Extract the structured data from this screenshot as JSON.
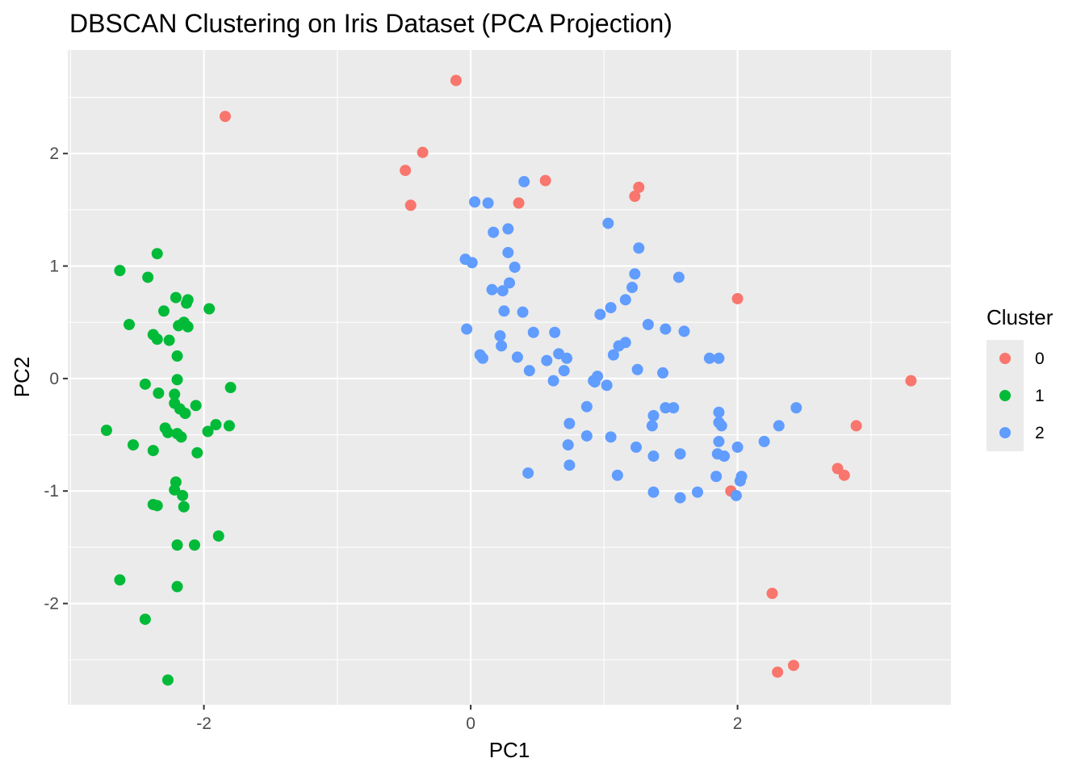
{
  "chart_data": {
    "type": "scatter",
    "title": "DBSCAN Clustering on Iris Dataset (PCA Projection)",
    "xlabel": "PC1",
    "ylabel": "PC2",
    "xlim": [
      -3.02,
      3.6
    ],
    "ylim": [
      -2.9,
      2.92
    ],
    "x_ticks": [
      -2,
      0,
      2
    ],
    "y_ticks": [
      -2,
      -1,
      0,
      1,
      2
    ],
    "x_tick_labels": [
      "-2",
      "0",
      "2"
    ],
    "y_tick_labels": [
      "-2",
      "-1",
      "0",
      "1",
      "2"
    ],
    "grid": true,
    "legend": {
      "title": "Cluster",
      "position": "right",
      "labels": [
        "0",
        "1",
        "2"
      ]
    },
    "colors": {
      "0": "#F8766D",
      "1": "#00BA38",
      "2": "#619CFF"
    },
    "series": [
      {
        "name": "0",
        "points": [
          [
            -1.84,
            2.33
          ],
          [
            -0.11,
            2.65
          ],
          [
            -0.36,
            2.01
          ],
          [
            -0.49,
            1.85
          ],
          [
            -0.45,
            1.54
          ],
          [
            0.36,
            1.56
          ],
          [
            0.56,
            1.76
          ],
          [
            1.23,
            1.62
          ],
          [
            1.26,
            1.7
          ],
          [
            2.0,
            0.71
          ],
          [
            3.3,
            -0.02
          ],
          [
            2.89,
            -0.42
          ],
          [
            2.75,
            -0.8
          ],
          [
            2.8,
            -0.86
          ],
          [
            1.95,
            -1.0
          ],
          [
            2.26,
            -1.91
          ],
          [
            2.3,
            -2.61
          ],
          [
            2.42,
            -2.55
          ]
        ]
      },
      {
        "name": "1",
        "points": [
          [
            -2.35,
            1.11
          ],
          [
            -2.63,
            0.96
          ],
          [
            -2.42,
            0.9
          ],
          [
            -2.21,
            0.72
          ],
          [
            -2.12,
            0.7
          ],
          [
            -2.13,
            0.67
          ],
          [
            -1.96,
            0.62
          ],
          [
            -2.3,
            0.6
          ],
          [
            -2.15,
            0.5
          ],
          [
            -2.56,
            0.48
          ],
          [
            -2.19,
            0.47
          ],
          [
            -2.12,
            0.46
          ],
          [
            -2.38,
            0.39
          ],
          [
            -2.35,
            0.35
          ],
          [
            -2.26,
            0.34
          ],
          [
            -2.2,
            0.2
          ],
          [
            -2.2,
            -0.01
          ],
          [
            -2.44,
            -0.05
          ],
          [
            -1.8,
            -0.08
          ],
          [
            -2.34,
            -0.13
          ],
          [
            -2.22,
            -0.14
          ],
          [
            -2.22,
            -0.22
          ],
          [
            -2.06,
            -0.24
          ],
          [
            -2.18,
            -0.27
          ],
          [
            -2.14,
            -0.31
          ],
          [
            -2.73,
            -0.46
          ],
          [
            -1.91,
            -0.41
          ],
          [
            -1.81,
            -0.42
          ],
          [
            -1.97,
            -0.47
          ],
          [
            -2.29,
            -0.44
          ],
          [
            -2.27,
            -0.48
          ],
          [
            -2.2,
            -0.49
          ],
          [
            -2.17,
            -0.52
          ],
          [
            -2.53,
            -0.59
          ],
          [
            -2.38,
            -0.64
          ],
          [
            -2.05,
            -0.66
          ],
          [
            -2.21,
            -0.92
          ],
          [
            -2.22,
            -0.99
          ],
          [
            -2.16,
            -1.04
          ],
          [
            -2.38,
            -1.12
          ],
          [
            -2.35,
            -1.13
          ],
          [
            -2.15,
            -1.14
          ],
          [
            -1.89,
            -1.4
          ],
          [
            -2.2,
            -1.48
          ],
          [
            -2.07,
            -1.48
          ],
          [
            -2.63,
            -1.79
          ],
          [
            -2.2,
            -1.85
          ],
          [
            -2.44,
            -2.14
          ],
          [
            -2.27,
            -2.68
          ]
        ]
      },
      {
        "name": "2",
        "points": [
          [
            0.4,
            1.75
          ],
          [
            0.03,
            1.57
          ],
          [
            0.13,
            1.56
          ],
          [
            1.03,
            1.38
          ],
          [
            0.28,
            1.33
          ],
          [
            0.17,
            1.3
          ],
          [
            1.26,
            1.16
          ],
          [
            0.28,
            1.12
          ],
          [
            -0.04,
            1.06
          ],
          [
            0.01,
            1.03
          ],
          [
            0.33,
            0.99
          ],
          [
            1.23,
            0.93
          ],
          [
            1.56,
            0.9
          ],
          [
            0.29,
            0.85
          ],
          [
            1.21,
            0.81
          ],
          [
            0.16,
            0.79
          ],
          [
            0.24,
            0.78
          ],
          [
            1.16,
            0.7
          ],
          [
            1.05,
            0.63
          ],
          [
            0.25,
            0.6
          ],
          [
            0.39,
            0.59
          ],
          [
            0.97,
            0.57
          ],
          [
            1.33,
            0.48
          ],
          [
            1.46,
            0.44
          ],
          [
            1.6,
            0.42
          ],
          [
            -0.03,
            0.44
          ],
          [
            0.47,
            0.41
          ],
          [
            0.63,
            0.41
          ],
          [
            0.22,
            0.38
          ],
          [
            1.16,
            0.32
          ],
          [
            1.11,
            0.29
          ],
          [
            0.23,
            0.29
          ],
          [
            0.66,
            0.22
          ],
          [
            1.07,
            0.21
          ],
          [
            0.07,
            0.21
          ],
          [
            0.09,
            0.18
          ],
          [
            0.35,
            0.19
          ],
          [
            0.72,
            0.18
          ],
          [
            1.79,
            0.18
          ],
          [
            1.86,
            0.18
          ],
          [
            0.57,
            0.16
          ],
          [
            1.25,
            0.08
          ],
          [
            0.44,
            0.07
          ],
          [
            0.7,
            0.07
          ],
          [
            1.44,
            0.05
          ],
          [
            0.95,
            0.02
          ],
          [
            0.92,
            -0.02
          ],
          [
            0.62,
            -0.02
          ],
          [
            0.93,
            -0.03
          ],
          [
            1.02,
            -0.06
          ],
          [
            0.87,
            -0.25
          ],
          [
            1.46,
            -0.26
          ],
          [
            1.52,
            -0.26
          ],
          [
            2.44,
            -0.26
          ],
          [
            1.86,
            -0.3
          ],
          [
            1.37,
            -0.33
          ],
          [
            0.74,
            -0.4
          ],
          [
            1.86,
            -0.39
          ],
          [
            1.88,
            -0.42
          ],
          [
            2.31,
            -0.42
          ],
          [
            1.36,
            -0.42
          ],
          [
            0.87,
            -0.51
          ],
          [
            1.05,
            -0.52
          ],
          [
            1.86,
            -0.56
          ],
          [
            2.2,
            -0.56
          ],
          [
            0.73,
            -0.59
          ],
          [
            1.24,
            -0.61
          ],
          [
            2.0,
            -0.61
          ],
          [
            1.57,
            -0.67
          ],
          [
            1.85,
            -0.67
          ],
          [
            1.37,
            -0.69
          ],
          [
            1.9,
            -0.69
          ],
          [
            0.74,
            -0.77
          ],
          [
            0.43,
            -0.84
          ],
          [
            1.1,
            -0.86
          ],
          [
            1.84,
            -0.87
          ],
          [
            2.03,
            -0.87
          ],
          [
            2.02,
            -0.91
          ],
          [
            1.37,
            -1.01
          ],
          [
            1.7,
            -1.01
          ],
          [
            1.57,
            -1.06
          ],
          [
            1.99,
            -1.04
          ]
        ]
      }
    ]
  }
}
